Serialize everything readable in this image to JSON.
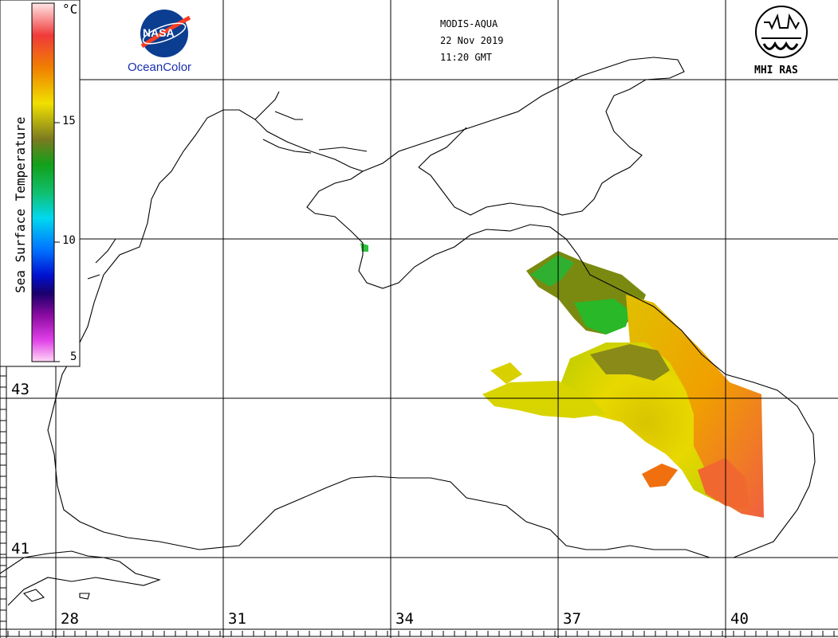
{
  "header": {
    "sensor": "MODIS-AQUA",
    "date": "22 Nov 2019",
    "time": "11:20 GMT"
  },
  "logos": {
    "nasa_text": "NASA",
    "oceancolor_text": "OceanColor",
    "mhi_text": "MHI RAS"
  },
  "colorbar": {
    "title": "Sea Surface Temperature",
    "unit": "°C",
    "ticks": [
      "15",
      "10",
      "5"
    ],
    "range": [
      5,
      20
    ]
  },
  "latitude_labels": [
    "43",
    "41"
  ],
  "longitude_labels": [
    "28",
    "31",
    "34",
    "37",
    "40"
  ],
  "colors": {
    "coastline": "#000000",
    "grid": "#000000",
    "background": "#ffffff"
  }
}
